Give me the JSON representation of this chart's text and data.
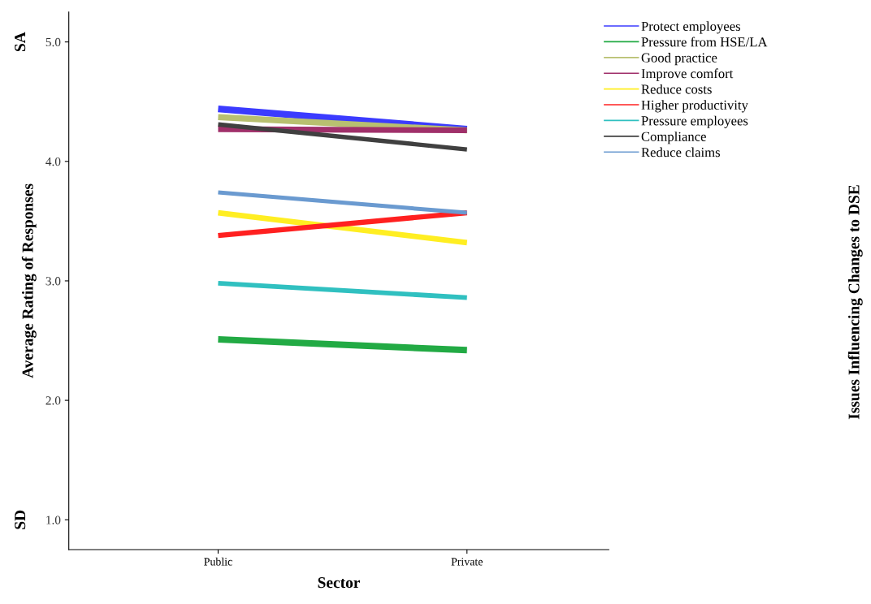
{
  "chart_data": {
    "type": "line",
    "xlabel": "Sector",
    "ylabel": "Average Rating of Responses",
    "legend_title": "Issues Influencing Changes to DSE",
    "categories": [
      "Public",
      "Private"
    ],
    "ylim": [
      0.75,
      5.25
    ],
    "yticks": [
      {
        "value": 1,
        "label": "1.0"
      },
      {
        "value": 2,
        "label": "2.0"
      },
      {
        "value": 3,
        "label": "3.0"
      },
      {
        "value": 4,
        "label": "4.0"
      },
      {
        "value": 5,
        "label": "5.0"
      }
    ],
    "annotations": [
      "SA",
      "SD"
    ],
    "grid": false,
    "legend": "top right",
    "marker": "none",
    "line_style": "solid",
    "series": [
      {
        "name": "Protect employees",
        "color": "#3b3bff",
        "values": [
          4.44,
          4.27
        ]
      },
      {
        "name": "Pressure from HSE/LA",
        "color": "#22aa44",
        "values": [
          2.51,
          2.42
        ]
      },
      {
        "name": "Good practice",
        "color": "#b8c070",
        "values": [
          4.37,
          4.26
        ]
      },
      {
        "name": "Improve comfort",
        "color": "#a0306a",
        "values": [
          4.27,
          4.26
        ]
      },
      {
        "name": "Reduce costs",
        "color": "#ffee22",
        "values": [
          3.57,
          3.32
        ]
      },
      {
        "name": "Higher productivity",
        "color": "#ff2020",
        "values": [
          3.38,
          3.57
        ]
      },
      {
        "name": "Pressure employees",
        "color": "#30c0c0",
        "values": [
          2.98,
          2.86
        ]
      },
      {
        "name": "Compliance",
        "color": "#404040",
        "values": [
          4.31,
          4.1
        ]
      },
      {
        "name": "Reduce claims",
        "color": "#6a9ad0",
        "values": [
          3.74,
          3.57
        ]
      }
    ]
  }
}
